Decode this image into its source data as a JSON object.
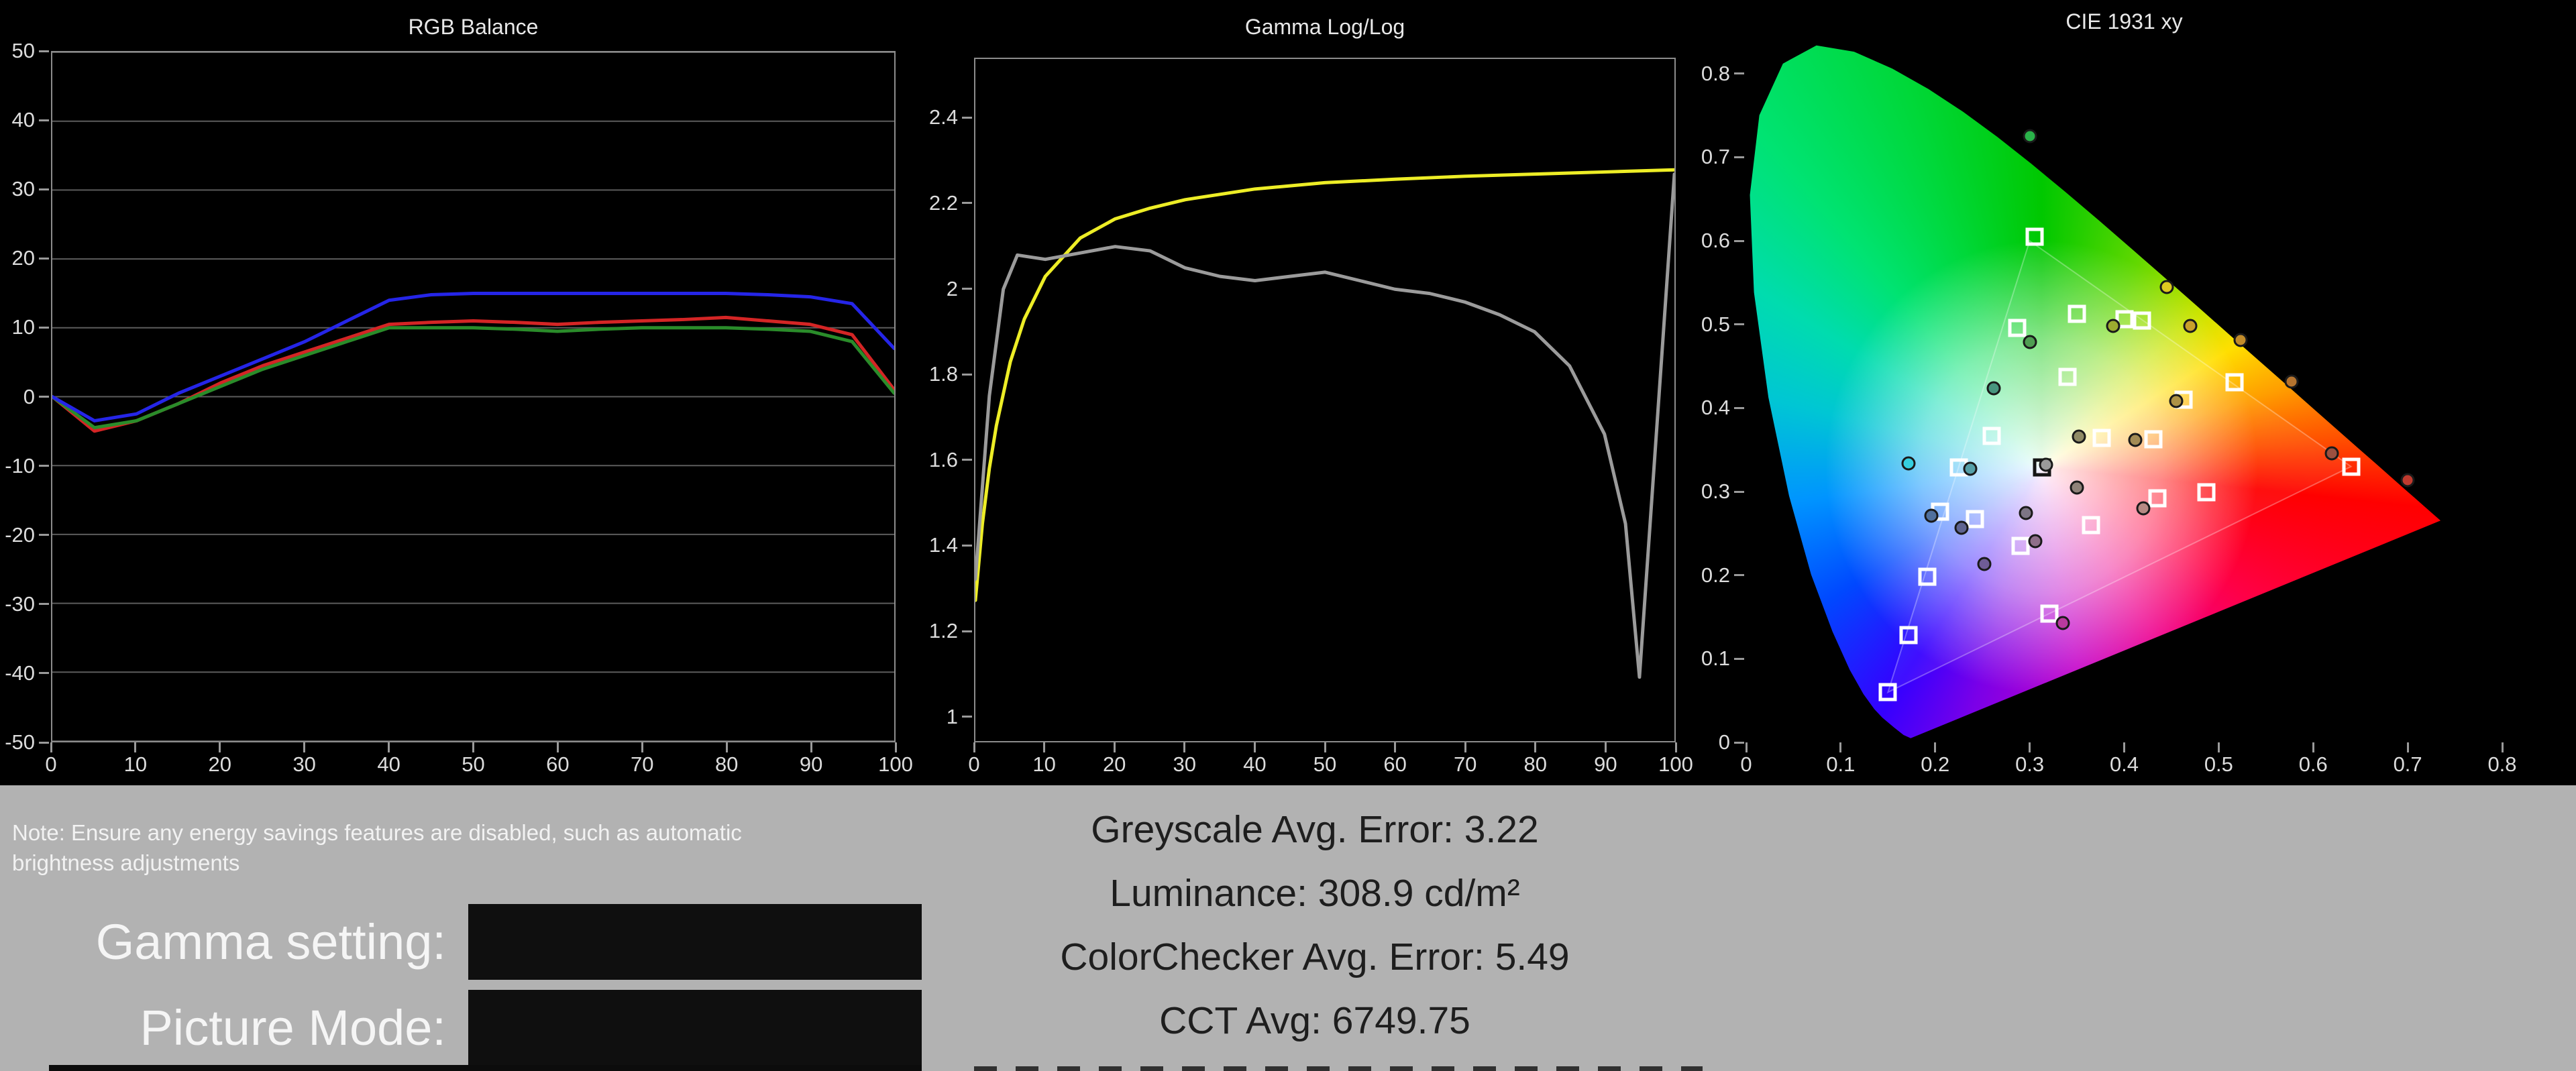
{
  "chart_data": [
    {
      "type": "line",
      "title": "RGB Balance",
      "xlabel": "",
      "ylabel": "",
      "xlim": [
        0,
        100
      ],
      "ylim": [
        -50,
        50
      ],
      "xticks": [
        0,
        10,
        20,
        30,
        40,
        50,
        60,
        70,
        80,
        90,
        100
      ],
      "yticks": [
        50,
        40,
        30,
        20,
        10,
        0,
        -10,
        -20,
        -30,
        -40,
        -50
      ],
      "grid": true,
      "legend_position": "none",
      "x": [
        0,
        5,
        10,
        15,
        20,
        25,
        30,
        35,
        40,
        45,
        50,
        55,
        60,
        65,
        70,
        75,
        80,
        85,
        90,
        95,
        100
      ],
      "series": [
        {
          "name": "red",
          "color": "#d42525",
          "values": [
            0,
            -5,
            -3.5,
            -1,
            2,
            4.5,
            6.5,
            8.5,
            10.5,
            10.8,
            11,
            10.8,
            10.5,
            10.8,
            11,
            11.2,
            11.5,
            11,
            10.5,
            9,
            1
          ]
        },
        {
          "name": "green",
          "color": "#2a8c2a",
          "values": [
            0,
            -4.5,
            -3.5,
            -1,
            1.5,
            4,
            6,
            8,
            10,
            10,
            10,
            9.8,
            9.5,
            9.8,
            10,
            10,
            10,
            9.8,
            9.5,
            8,
            0.5
          ]
        },
        {
          "name": "blue",
          "color": "#2525e8",
          "values": [
            0,
            -3.5,
            -2.5,
            0.5,
            3,
            5.5,
            8,
            11,
            14,
            14.8,
            15,
            15,
            15,
            15,
            15,
            15,
            15,
            14.8,
            14.5,
            13.5,
            7
          ]
        }
      ]
    },
    {
      "type": "line",
      "title": "Gamma Log/Log",
      "xlabel": "",
      "ylabel": "",
      "xlim": [
        0,
        100
      ],
      "ylim": [
        0.94,
        2.54
      ],
      "xticks": [
        0,
        10,
        20,
        30,
        40,
        50,
        60,
        70,
        80,
        90,
        100
      ],
      "yticks": [
        2.4,
        2.2,
        2,
        1.8,
        1.6,
        1.4,
        1.2,
        1
      ],
      "grid": false,
      "legend_position": "none",
      "series": [
        {
          "name": "target-gamma",
          "color": "#eded26",
          "x": [
            0,
            1,
            2,
            3,
            5,
            7,
            10,
            15,
            20,
            25,
            30,
            40,
            50,
            60,
            70,
            80,
            90,
            100
          ],
          "values": [
            1.27,
            1.45,
            1.58,
            1.68,
            1.83,
            1.93,
            2.03,
            2.12,
            2.165,
            2.19,
            2.21,
            2.235,
            2.25,
            2.258,
            2.265,
            2.27,
            2.275,
            2.28
          ]
        },
        {
          "name": "measured-gamma",
          "color": "#9b9b9b",
          "x": [
            0,
            2,
            4,
            6,
            10,
            15,
            20,
            25,
            30,
            35,
            40,
            45,
            50,
            55,
            60,
            65,
            70,
            75,
            80,
            85,
            90,
            93,
            95,
            100
          ],
          "values": [
            1.32,
            1.75,
            2.0,
            2.08,
            2.07,
            2.085,
            2.1,
            2.09,
            2.05,
            2.03,
            2.02,
            2.03,
            2.04,
            2.02,
            2.0,
            1.99,
            1.97,
            1.94,
            1.9,
            1.82,
            1.66,
            1.45,
            1.09,
            2.27
          ]
        }
      ]
    },
    {
      "type": "scatter",
      "title": "CIE 1931 xy",
      "xlabel": "",
      "ylabel": "",
      "xlim": [
        0,
        0.8
      ],
      "ylim": [
        0,
        0.86
      ],
      "xticks": [
        0,
        0.1,
        0.2,
        0.3,
        0.4,
        0.5,
        0.6,
        0.7,
        0.8
      ],
      "yticks": [
        0,
        0.1,
        0.2,
        0.3,
        0.4,
        0.5,
        0.6,
        0.7,
        0.8
      ],
      "grid": false,
      "white_point": [
        0.3127,
        0.329
      ],
      "gamut_triangle": [
        [
          0.64,
          0.33
        ],
        [
          0.3,
          0.6
        ],
        [
          0.15,
          0.06
        ]
      ],
      "locus": [
        [
          0.1741,
          0.005
        ],
        [
          0.1666,
          0.0089
        ],
        [
          0.1566,
          0.0177
        ],
        [
          0.144,
          0.0297
        ],
        [
          0.1355,
          0.0399
        ],
        [
          0.1241,
          0.0578
        ],
        [
          0.1096,
          0.0868
        ],
        [
          0.0913,
          0.1327
        ],
        [
          0.0687,
          0.2007
        ],
        [
          0.0454,
          0.295
        ],
        [
          0.0235,
          0.4127
        ],
        [
          0.0082,
          0.5384
        ],
        [
          0.0039,
          0.6548
        ],
        [
          0.0139,
          0.7502
        ],
        [
          0.0389,
          0.812
        ],
        [
          0.0743,
          0.8338
        ],
        [
          0.1142,
          0.8262
        ],
        [
          0.1547,
          0.8059
        ],
        [
          0.1929,
          0.7816
        ],
        [
          0.2296,
          0.7543
        ],
        [
          0.2658,
          0.7243
        ],
        [
          0.3016,
          0.6923
        ],
        [
          0.3373,
          0.6589
        ],
        [
          0.3731,
          0.6245
        ],
        [
          0.4087,
          0.5896
        ],
        [
          0.4441,
          0.5547
        ],
        [
          0.4788,
          0.5202
        ],
        [
          0.5125,
          0.4866
        ],
        [
          0.5448,
          0.4544
        ],
        [
          0.5752,
          0.4242
        ],
        [
          0.6029,
          0.3965
        ],
        [
          0.627,
          0.3725
        ],
        [
          0.6482,
          0.3514
        ],
        [
          0.6658,
          0.334
        ],
        [
          0.6801,
          0.3197
        ],
        [
          0.6915,
          0.3083
        ],
        [
          0.7006,
          0.2993
        ],
        [
          0.7079,
          0.292
        ],
        [
          0.719,
          0.2809
        ],
        [
          0.726,
          0.274
        ],
        [
          0.7347,
          0.2653
        ]
      ],
      "targets": [
        [
          0.15,
          0.06
        ],
        [
          0.305,
          0.605
        ],
        [
          0.64,
          0.33
        ],
        [
          0.225,
          0.329
        ],
        [
          0.321,
          0.154
        ],
        [
          0.419,
          0.505
        ],
        [
          0.4,
          0.506
        ],
        [
          0.35,
          0.513
        ],
        [
          0.287,
          0.496
        ],
        [
          0.34,
          0.437
        ],
        [
          0.26,
          0.367
        ],
        [
          0.376,
          0.364
        ],
        [
          0.431,
          0.363
        ],
        [
          0.205,
          0.276
        ],
        [
          0.242,
          0.267
        ],
        [
          0.192,
          0.198
        ],
        [
          0.172,
          0.128
        ],
        [
          0.29,
          0.235
        ],
        [
          0.365,
          0.26
        ],
        [
          0.487,
          0.299
        ],
        [
          0.517,
          0.431
        ],
        [
          0.463,
          0.41
        ],
        [
          0.435,
          0.292
        ],
        [
          0.313,
          0.329,
          "#151515"
        ]
      ],
      "measurements": [
        [
          0.3,
          0.725,
          "#2ab24a"
        ],
        [
          0.445,
          0.545,
          "#ddc920"
        ],
        [
          0.388,
          0.498,
          "#9cab2f"
        ],
        [
          0.47,
          0.498,
          "#c9a02b"
        ],
        [
          0.523,
          0.481,
          "#c28c2a"
        ],
        [
          0.577,
          0.432,
          "#b5742f"
        ],
        [
          0.62,
          0.346,
          "#9c5040"
        ],
        [
          0.7,
          0.314,
          "#c03a2e"
        ],
        [
          0.172,
          0.334,
          "#35cfdf"
        ],
        [
          0.196,
          0.271,
          "#50709d"
        ],
        [
          0.228,
          0.257,
          "#5f6491"
        ],
        [
          0.252,
          0.213,
          "#6f5c96"
        ],
        [
          0.306,
          0.241,
          "#8f6f8a"
        ],
        [
          0.335,
          0.143,
          "#b93a9e"
        ],
        [
          0.42,
          0.28,
          "#b78a84"
        ],
        [
          0.3,
          0.479,
          "#4f9e52"
        ],
        [
          0.262,
          0.424,
          "#48957f"
        ],
        [
          0.352,
          0.366,
          "#8f8a66"
        ],
        [
          0.412,
          0.362,
          "#a38c55"
        ],
        [
          0.455,
          0.408,
          "#ad9246"
        ],
        [
          0.317,
          0.332,
          "#9a9a9a"
        ],
        [
          0.35,
          0.305,
          "#8f8279"
        ],
        [
          0.237,
          0.327,
          "#55a0a8"
        ],
        [
          0.296,
          0.274,
          "#7d7585"
        ]
      ]
    }
  ],
  "colors": {
    "footer_background": "#b2b2b2",
    "chart_background": "#000000",
    "stats_text": "#1e1e1e",
    "note_text": "#f2f2f2"
  },
  "bottom": {
    "note": "Note: Ensure any energy savings features are disabled, such as automatic brightness adjustments",
    "fields": [
      {
        "label": "Gamma setting:",
        "value": ""
      },
      {
        "label": "Picture Mode:",
        "value": ""
      }
    ],
    "stats": [
      "Greyscale Avg. Error: 3.22",
      "Luminance: 308.9 cd/m²",
      "ColorChecker Avg. Error: 5.49",
      "CCT Avg: 6749.75"
    ]
  }
}
